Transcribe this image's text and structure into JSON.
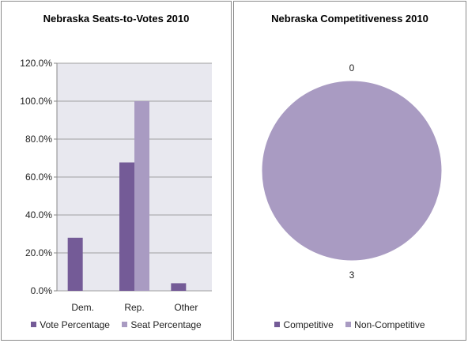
{
  "colors": {
    "series_primary": "#745b97",
    "series_secondary": "#a99bc2",
    "plot_bg": "#e8e8ef",
    "grid": "#a0a0a0",
    "pie_border": "#ffffff"
  },
  "chart_data": [
    {
      "type": "bar",
      "title": "Nebraska Seats-to-Votes 2010",
      "categories": [
        "Dem.",
        "Rep.",
        "Other"
      ],
      "series": [
        {
          "name": "Vote Percentage",
          "values": [
            28.0,
            67.7,
            4.0
          ]
        },
        {
          "name": "Seat Percentage",
          "values": [
            0,
            100.0,
            0
          ]
        }
      ],
      "ylim": [
        0,
        120
      ],
      "yticks": [
        "0.0%",
        "20.0%",
        "40.0%",
        "60.0%",
        "80.0%",
        "100.0%",
        "120.0%"
      ],
      "xlabel": "",
      "ylabel": "",
      "grid": true,
      "legend_position": "bottom"
    },
    {
      "type": "pie",
      "title": "Nebraska Competitiveness 2010",
      "labels": [
        "Competitive",
        "Non-Competitive"
      ],
      "values": [
        0,
        3
      ],
      "data_labels": [
        "0",
        "3"
      ],
      "legend_position": "bottom"
    }
  ]
}
